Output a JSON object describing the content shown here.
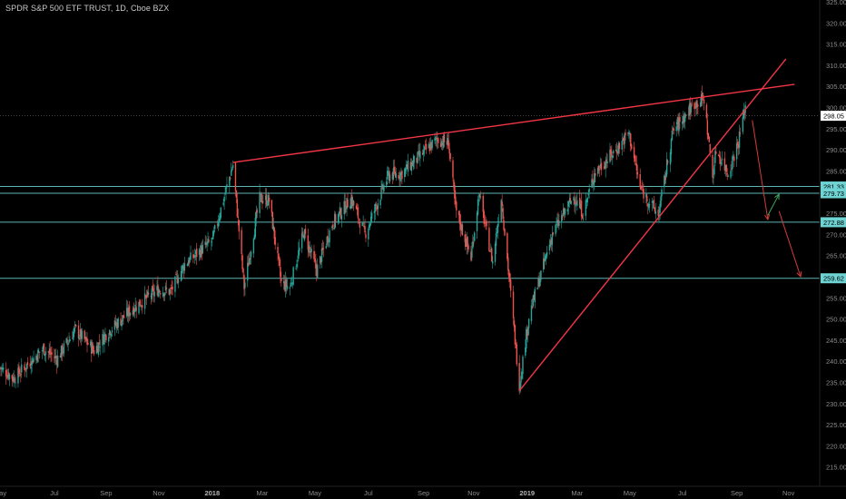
{
  "header": {
    "title": "SPDR S&P 500 ETF TRUST, 1D, Cboe BZX"
  },
  "chart_data": {
    "type": "candlestick",
    "title": "SPDR S&P 500 ETF TRUST, 1D, Cboe BZX",
    "ylim": [
      210,
      325
    ],
    "x_range": [
      "2017-05-01",
      "2019-11-15"
    ],
    "y_ticks": [
      215,
      220,
      225,
      230,
      235,
      240,
      245,
      250,
      255,
      260,
      265,
      270,
      275,
      280,
      285,
      290,
      295,
      300,
      305,
      310,
      315,
      320,
      325
    ],
    "x_ticks": [
      {
        "label": "May",
        "date": "2017-05-01"
      },
      {
        "label": "Jul",
        "date": "2017-07-03"
      },
      {
        "label": "Sep",
        "date": "2017-09-01"
      },
      {
        "label": "Nov",
        "date": "2017-11-01"
      },
      {
        "label": "2018",
        "date": "2018-01-02"
      },
      {
        "label": "Mar",
        "date": "2018-03-01"
      },
      {
        "label": "May",
        "date": "2018-05-01"
      },
      {
        "label": "Jul",
        "date": "2018-07-02"
      },
      {
        "label": "Sep",
        "date": "2018-09-04"
      },
      {
        "label": "Nov",
        "date": "2018-11-01"
      },
      {
        "label": "2019",
        "date": "2019-01-02"
      },
      {
        "label": "Mar",
        "date": "2019-03-01"
      },
      {
        "label": "May",
        "date": "2019-05-01"
      },
      {
        "label": "Jul",
        "date": "2019-07-01"
      },
      {
        "label": "Sep",
        "date": "2019-09-02"
      },
      {
        "label": "Nov",
        "date": "2019-11-01"
      }
    ],
    "price_path": [
      [
        "2017-05-01",
        238.5
      ],
      [
        "2017-05-17",
        236.0
      ],
      [
        "2017-06-20",
        243.0
      ],
      [
        "2017-07-06",
        240.5
      ],
      [
        "2017-07-27",
        247.5
      ],
      [
        "2017-08-18",
        242.5
      ],
      [
        "2017-09-01",
        246.5
      ],
      [
        "2017-10-02",
        252.5
      ],
      [
        "2017-11-01",
        257.0
      ],
      [
        "2017-11-15",
        256.5
      ],
      [
        "2017-12-01",
        263.0
      ],
      [
        "2018-01-02",
        268.5
      ],
      [
        "2018-01-26",
        286.5
      ],
      [
        "2018-02-08",
        257.5
      ],
      [
        "2018-02-26",
        278.5
      ],
      [
        "2018-03-09",
        278.0
      ],
      [
        "2018-03-23",
        258.5
      ],
      [
        "2018-04-02",
        257.5
      ],
      [
        "2018-04-18",
        270.5
      ],
      [
        "2018-05-03",
        261.5
      ],
      [
        "2018-05-21",
        272.5
      ],
      [
        "2018-06-12",
        278.5
      ],
      [
        "2018-06-28",
        270.0
      ],
      [
        "2018-07-25",
        284.0
      ],
      [
        "2018-08-10",
        284.5
      ],
      [
        "2018-09-20",
        292.5
      ],
      [
        "2018-10-03",
        291.5
      ],
      [
        "2018-10-11",
        276.0
      ],
      [
        "2018-10-29",
        264.5
      ],
      [
        "2018-11-07",
        279.5
      ],
      [
        "2018-11-23",
        263.5
      ],
      [
        "2018-12-03",
        279.0
      ],
      [
        "2018-12-24",
        234.5
      ],
      [
        "2019-01-04",
        250.5
      ],
      [
        "2019-01-31",
        270.0
      ],
      [
        "2019-02-25",
        279.0
      ],
      [
        "2019-03-08",
        275.0
      ],
      [
        "2019-03-21",
        284.5
      ],
      [
        "2019-04-15",
        290.0
      ],
      [
        "2019-04-30",
        294.0
      ],
      [
        "2019-05-13",
        281.0
      ],
      [
        "2019-06-03",
        274.5
      ],
      [
        "2019-06-20",
        294.5
      ],
      [
        "2019-07-15",
        301.0
      ],
      [
        "2019-07-26",
        302.0
      ],
      [
        "2019-08-05",
        283.5
      ],
      [
        "2019-08-09",
        290.0
      ],
      [
        "2019-08-23",
        284.5
      ],
      [
        "2019-09-04",
        292.0
      ],
      [
        "2019-09-12",
        300.5
      ]
    ],
    "last_price": 298.05,
    "horizontal_levels": [
      281.33,
      279.73,
      272.88,
      259.62
    ],
    "level_color": "#6fd3d3",
    "trend_lines": [
      {
        "color": "#f23645",
        "from": [
          "2018-01-26",
          287.0
        ],
        "to": [
          "2019-11-08",
          305.5
        ]
      },
      {
        "color": "#f23645",
        "from": [
          "2018-12-24",
          233.0
        ],
        "to": [
          "2019-10-29",
          311.5
        ]
      }
    ],
    "arrows": [
      {
        "color": "#d43b3b",
        "from": [
          "2019-09-20",
          297.0
        ],
        "to": [
          "2019-10-08",
          273.5
        ]
      },
      {
        "color": "#3cab5c",
        "from": [
          "2019-10-08",
          274.5
        ],
        "to": [
          "2019-10-21",
          279.5
        ]
      },
      {
        "color": "#d43b3b",
        "from": [
          "2019-10-21",
          275.5
        ],
        "to": [
          "2019-11-15",
          260.0
        ]
      }
    ],
    "up_color": "#26a69a",
    "down_color": "#ef5350",
    "label_color": "#8c8c8c",
    "xlabel": "",
    "ylabel": ""
  }
}
